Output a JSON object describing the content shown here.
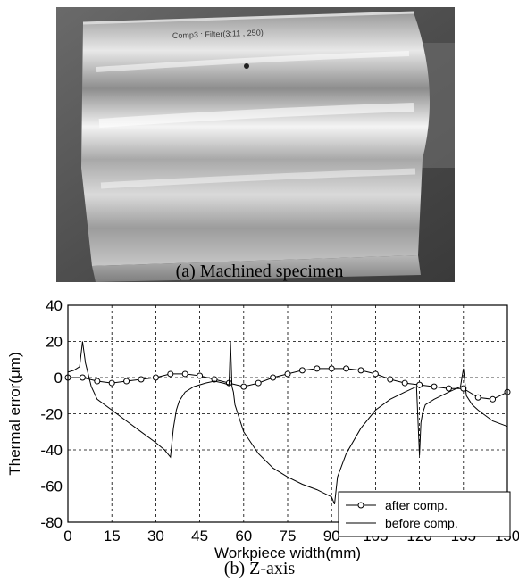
{
  "figure": {
    "photo": {
      "label_text": "Comp3 : Filter(3:11 , 250)",
      "colors": {
        "background": "#5a5a5a",
        "metal": "#c8c8c8",
        "highlight": "#f2f2f2"
      }
    },
    "caption_a": "(a) Machined specimen",
    "caption_b": "(b) Z-axis"
  },
  "chart_data": {
    "type": "line",
    "title": "",
    "xlabel": "Workpiece width(mm)",
    "ylabel": "Thermal error(μm)",
    "xlim": [
      0,
      150
    ],
    "ylim": [
      -80,
      40
    ],
    "xticks": [
      0,
      15,
      30,
      45,
      60,
      75,
      90,
      105,
      120,
      135,
      150
    ],
    "yticks": [
      40,
      20,
      0,
      -20,
      -40,
      -60,
      -80
    ],
    "grid": true,
    "legend_position": "bottom-right",
    "series": [
      {
        "name": "after comp.",
        "marker": "circle",
        "color": "#000000",
        "x": [
          0,
          5,
          10,
          15,
          20,
          25,
          30,
          35,
          40,
          45,
          50,
          55,
          60,
          65,
          70,
          75,
          80,
          85,
          90,
          95,
          100,
          105,
          110,
          115,
          120,
          125,
          130,
          135,
          140,
          145,
          150
        ],
        "y": [
          0,
          0,
          -2,
          -3,
          -2,
          -1,
          0,
          2,
          2,
          1,
          -1,
          -3,
          -5,
          -3,
          0,
          2,
          4,
          5,
          5,
          5,
          4,
          2,
          -1,
          -3,
          -4,
          -5,
          -6,
          -6,
          -11,
          -12,
          -8
        ]
      },
      {
        "name": "before comp.",
        "marker": "none",
        "color": "#000000",
        "x": [
          0,
          2,
          4,
          5,
          6,
          8,
          10,
          15,
          20,
          25,
          30,
          33,
          35,
          36,
          37,
          38,
          40,
          43,
          47,
          50,
          53,
          55,
          55.5,
          56,
          56.5,
          57,
          60,
          65,
          70,
          75,
          80,
          85,
          90,
          91,
          92,
          95,
          100,
          105,
          110,
          115,
          119,
          120,
          120.5,
          121,
          122,
          125,
          130,
          134,
          135,
          136,
          138,
          140,
          145,
          150
        ],
        "y": [
          3,
          4,
          6,
          20,
          8,
          -5,
          -12,
          -18,
          -24,
          -30,
          -36,
          -40,
          -44,
          -28,
          -18,
          -13,
          -8,
          -5,
          -3,
          -2,
          -3,
          -4,
          20,
          -5,
          -8,
          -15,
          -30,
          -42,
          -50,
          -55,
          -59,
          -62,
          -66,
          -70,
          -55,
          -42,
          -28,
          -18,
          -12,
          -8,
          -5,
          -43,
          -25,
          -20,
          -15,
          -12,
          -8,
          -5,
          5,
          -10,
          -15,
          -18,
          -24,
          -27
        ]
      }
    ]
  }
}
